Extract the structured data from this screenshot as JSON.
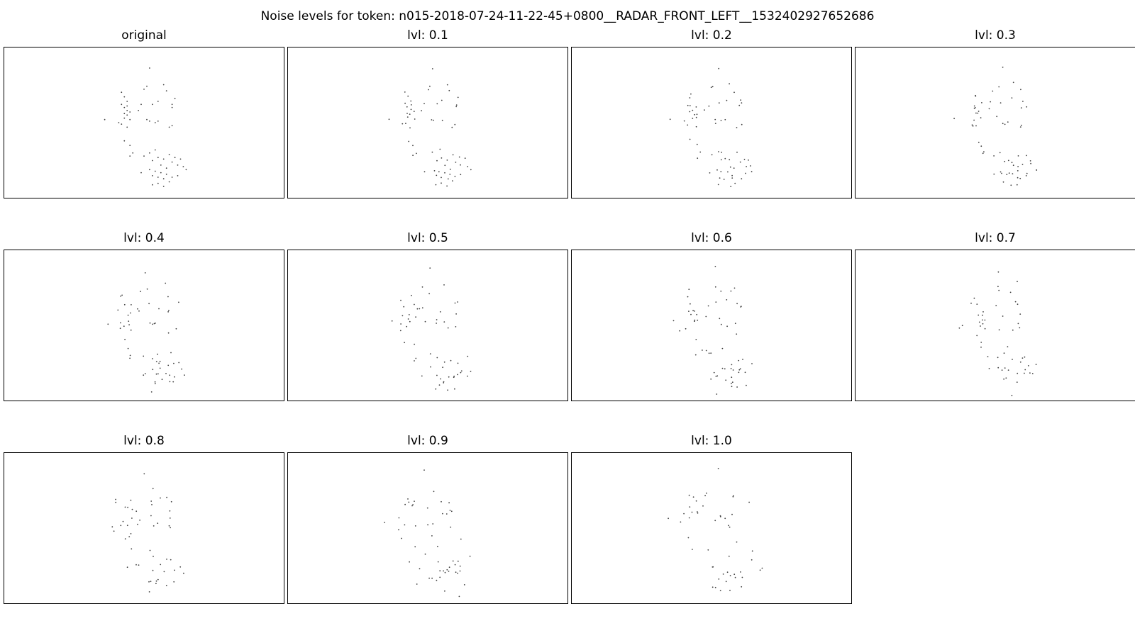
{
  "title": "Noise levels for token: n015-2018-07-24-11-22-45+0800__RADAR_FRONT_LEFT__1532402927652686",
  "chart_data": {
    "type": "scatter",
    "title": "Noise levels for token: n015-2018-07-24-11-22-45+0800__RADAR_FRONT_LEFT__1532402927652686",
    "xlim": [
      0,
      1
    ],
    "ylim": [
      0,
      1
    ],
    "axes_visible": false,
    "marker_color": "#404040",
    "panels": [
      {
        "title": "original",
        "noise_level": 0.0
      },
      {
        "title": "lvl: 0.1",
        "noise_level": 0.1
      },
      {
        "title": "lvl: 0.2",
        "noise_level": 0.2
      },
      {
        "title": "lvl: 0.3",
        "noise_level": 0.3
      },
      {
        "title": "lvl: 0.4",
        "noise_level": 0.4
      },
      {
        "title": "lvl: 0.5",
        "noise_level": 0.5
      },
      {
        "title": "lvl: 0.6",
        "noise_level": 0.6
      },
      {
        "title": "lvl: 0.7",
        "noise_level": 0.7
      },
      {
        "title": "lvl: 0.8",
        "noise_level": 0.8
      },
      {
        "title": "lvl: 0.9",
        "noise_level": 0.9
      },
      {
        "title": "lvl: 1.0",
        "noise_level": 1.0
      }
    ],
    "base_points": [
      [
        0.52,
        0.86
      ],
      [
        0.51,
        0.74
      ],
      [
        0.5,
        0.72
      ],
      [
        0.57,
        0.75
      ],
      [
        0.58,
        0.71
      ],
      [
        0.55,
        0.64
      ],
      [
        0.53,
        0.62
      ],
      [
        0.61,
        0.66
      ],
      [
        0.6,
        0.6
      ],
      [
        0.6,
        0.62
      ],
      [
        0.48,
        0.58
      ],
      [
        0.49,
        0.62
      ],
      [
        0.51,
        0.52
      ],
      [
        0.52,
        0.51
      ],
      [
        0.54,
        0.5
      ],
      [
        0.55,
        0.51
      ],
      [
        0.59,
        0.47
      ],
      [
        0.6,
        0.48
      ],
      [
        0.36,
        0.52
      ],
      [
        0.42,
        0.7
      ],
      [
        0.43,
        0.67
      ],
      [
        0.44,
        0.64
      ],
      [
        0.42,
        0.62
      ],
      [
        0.43,
        0.6
      ],
      [
        0.44,
        0.58
      ],
      [
        0.45,
        0.57
      ],
      [
        0.44,
        0.55
      ],
      [
        0.43,
        0.53
      ],
      [
        0.45,
        0.52
      ],
      [
        0.42,
        0.49
      ],
      [
        0.44,
        0.47
      ],
      [
        0.43,
        0.56
      ],
      [
        0.41,
        0.5
      ],
      [
        0.44,
        0.61
      ],
      [
        0.43,
        0.38
      ],
      [
        0.45,
        0.35
      ],
      [
        0.46,
        0.3
      ],
      [
        0.45,
        0.28
      ],
      [
        0.5,
        0.28
      ],
      [
        0.52,
        0.3
      ],
      [
        0.53,
        0.25
      ],
      [
        0.54,
        0.32
      ],
      [
        0.55,
        0.27
      ],
      [
        0.56,
        0.22
      ],
      [
        0.57,
        0.26
      ],
      [
        0.58,
        0.2
      ],
      [
        0.59,
        0.29
      ],
      [
        0.6,
        0.24
      ],
      [
        0.61,
        0.27
      ],
      [
        0.62,
        0.22
      ],
      [
        0.63,
        0.26
      ],
      [
        0.64,
        0.21
      ],
      [
        0.52,
        0.19
      ],
      [
        0.53,
        0.15
      ],
      [
        0.54,
        0.18
      ],
      [
        0.55,
        0.14
      ],
      [
        0.56,
        0.17
      ],
      [
        0.57,
        0.13
      ],
      [
        0.58,
        0.16
      ],
      [
        0.59,
        0.11
      ],
      [
        0.6,
        0.14
      ],
      [
        0.55,
        0.1
      ],
      [
        0.53,
        0.09
      ],
      [
        0.57,
        0.08
      ],
      [
        0.49,
        0.17
      ],
      [
        0.62,
        0.15
      ],
      [
        0.65,
        0.19
      ]
    ]
  }
}
